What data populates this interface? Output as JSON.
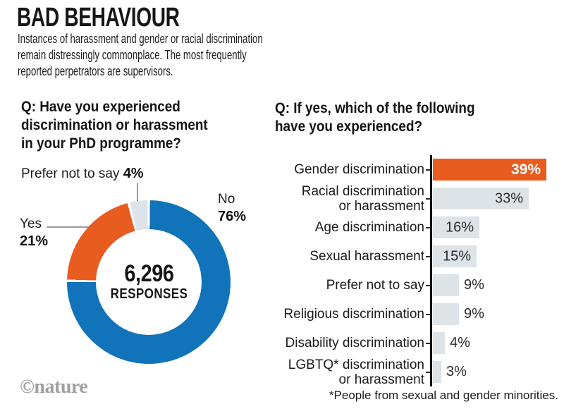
{
  "header": {
    "title": "BAD BEHAVIOUR",
    "subtitle": "Instances of harassment and gender or racial discrimination\nremain distressingly commonplace. The most frequently\nreported perpetrators are supervisors."
  },
  "donut_section": {
    "question": "Q: Have you experienced\ndiscrimination or harassment\nin your PhD programme?",
    "center_value": "6,296",
    "center_label": "RESPONSES",
    "slices": [
      {
        "label": "No",
        "value": 76,
        "pct_text": "76%",
        "color": "#1173B9"
      },
      {
        "label": "Yes",
        "value": 21,
        "pct_text": "21%",
        "color": "#E85C20"
      },
      {
        "label": "Prefer not to say",
        "value": 4,
        "pct_text": "4%",
        "color": "#DDE3E8"
      }
    ]
  },
  "bar_section": {
    "question": "Q: If yes, which of the following\nhave you experienced?",
    "bars": [
      {
        "label": "Gender discrimination",
        "value": 39,
        "pct_text": "39%",
        "color": "#E85C20",
        "emphasis": true
      },
      {
        "label": "Racial discrimination\nor harassment",
        "value": 33,
        "pct_text": "33%",
        "color": "#DEE3E8"
      },
      {
        "label": "Age discrimination",
        "value": 16,
        "pct_text": "16%",
        "color": "#DEE3E8"
      },
      {
        "label": "Sexual harassment",
        "value": 15,
        "pct_text": "15%",
        "color": "#DEE3E8"
      },
      {
        "label": "Prefer not to say",
        "value": 9,
        "pct_text": "9%",
        "color": "#DEE3E8"
      },
      {
        "label": "Religious discrimination",
        "value": 9,
        "pct_text": "9%",
        "color": "#DEE3E8"
      },
      {
        "label": "Disability discrimination",
        "value": 4,
        "pct_text": "4%",
        "color": "#DEE3E8"
      },
      {
        "label": "LGBTQ* discrimination\nor harassment",
        "value": 3,
        "pct_text": "3%",
        "color": "#DEE3E8"
      }
    ]
  },
  "footer": {
    "brand": "©nature",
    "footnote": "*People from sexual and gender minorities."
  },
  "chart_data": [
    {
      "type": "pie",
      "style": "donut",
      "title": "Q: Have you experienced discrimination or harassment in your PhD programme?",
      "labels": [
        "No",
        "Yes",
        "Prefer not to say"
      ],
      "values": [
        76,
        21,
        4
      ],
      "units": "%",
      "colors": [
        "#1173B9",
        "#E85C20",
        "#DDE3E8"
      ],
      "center_annotation": "6,296 RESPONSES",
      "legend_position": "callout-labels"
    },
    {
      "type": "bar",
      "orientation": "horizontal",
      "title": "Q: If yes, which of the following have you experienced?",
      "categories": [
        "Gender discrimination",
        "Racial discrimination or harassment",
        "Age discrimination",
        "Sexual harassment",
        "Prefer not to say",
        "Religious discrimination",
        "Disability discrimination",
        "LGBTQ* discrimination or harassment"
      ],
      "values": [
        39,
        33,
        16,
        15,
        9,
        9,
        4,
        3
      ],
      "units": "%",
      "xlim": [
        0,
        39
      ],
      "grid": false,
      "highlight_color": "#E85C20",
      "bar_color": "#DEE3E8",
      "footnote": "*People from sexual and gender minorities."
    }
  ]
}
